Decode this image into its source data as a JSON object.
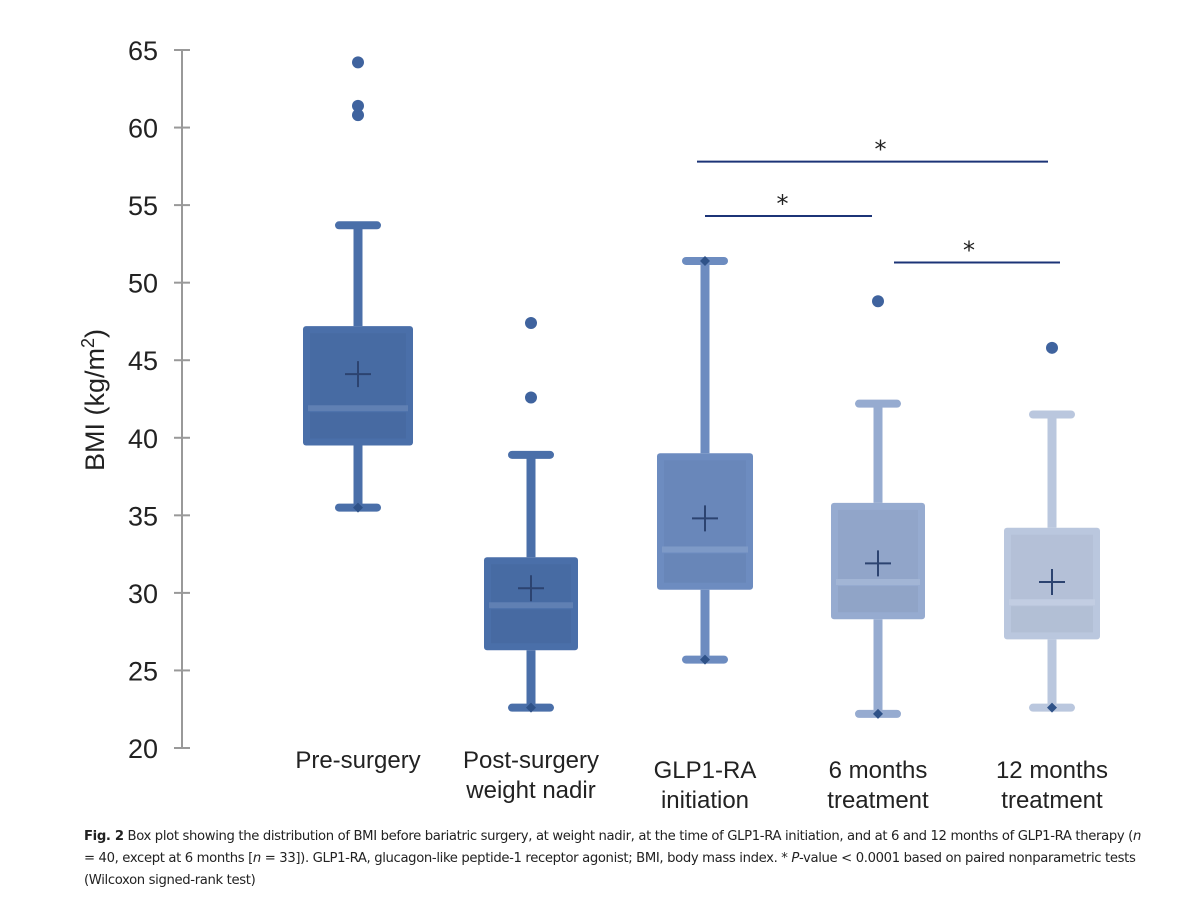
{
  "chart_data": {
    "type": "box",
    "title": "",
    "xlabel": "",
    "ylabel": "BMI (kg/m²)",
    "ylabel_parts": {
      "main": "BMI (kg/m",
      "sup": "2",
      "end": ")"
    },
    "ylim": [
      20,
      65
    ],
    "yticks": [
      20,
      25,
      30,
      35,
      40,
      45,
      50,
      55,
      60,
      65
    ],
    "grid": false,
    "categories": [
      {
        "lines": [
          "Pre-surgery"
        ]
      },
      {
        "lines": [
          "Post-surgery",
          "weight nadir"
        ]
      },
      {
        "lines": [
          "GLP1-RA",
          "initiation"
        ]
      },
      {
        "lines": [
          "6 months",
          "treatment"
        ]
      },
      {
        "lines": [
          "12 months",
          "treatment"
        ]
      }
    ],
    "boxes": [
      {
        "whisker_low": 35.5,
        "q1": 39.5,
        "median": 41.9,
        "mean": 44.1,
        "q3": 47.2,
        "whisker_high": 53.7,
        "outliers": [
          60.8,
          61.4,
          64.2
        ],
        "color": "#4a6fa9"
      },
      {
        "whisker_low": 22.6,
        "q1": 26.3,
        "median": 29.2,
        "mean": 30.3,
        "q3": 32.3,
        "whisker_high": 38.9,
        "outliers": [
          42.6,
          47.4
        ],
        "color": "#4a6fa9"
      },
      {
        "whisker_low": 25.7,
        "q1": 30.2,
        "median": 32.8,
        "mean": 34.8,
        "q3": 39.0,
        "whisker_high": 51.4,
        "outliers": [],
        "color": "#6d8cc0"
      },
      {
        "whisker_low": 22.2,
        "q1": 28.3,
        "median": 30.7,
        "mean": 31.9,
        "q3": 35.8,
        "whisker_high": 42.2,
        "outliers": [
          48.8
        ],
        "color": "#96abd0"
      },
      {
        "whisker_low": 22.6,
        "q1": 27.0,
        "median": 29.4,
        "mean": 30.7,
        "q3": 34.2,
        "whisker_high": 41.5,
        "outliers": [
          45.8
        ],
        "color": "#bac7de"
      }
    ],
    "significance": [
      {
        "from": 2,
        "to": 4,
        "label": "*",
        "level": 57.8
      },
      {
        "from": 2,
        "to": 3,
        "label": "*",
        "level": 54.3
      },
      {
        "from": 3,
        "to": 4,
        "label": "*",
        "level": 51.3
      }
    ],
    "outlier_color": "#3f639e",
    "sig_color": "#1c3477"
  },
  "caption": {
    "label": "Fig. 2",
    "text1": " Box plot showing the distribution of BMI before bariatric surgery, at weight nadir, at the time of GLP1-RA initiation, and at 6 and 12 months of GLP1-RA therapy (",
    "n1": "n",
    "text2": " = 40, except at 6 months [",
    "n2": "n",
    "text3": " = 33]). GLP1-RA, glucagon-like peptide-1 receptor agonist; BMI, body mass index. * ",
    "p": "P",
    "text4": "-value < 0.0001 based on paired nonparametric tests (Wilcoxon signed-rank test)"
  }
}
